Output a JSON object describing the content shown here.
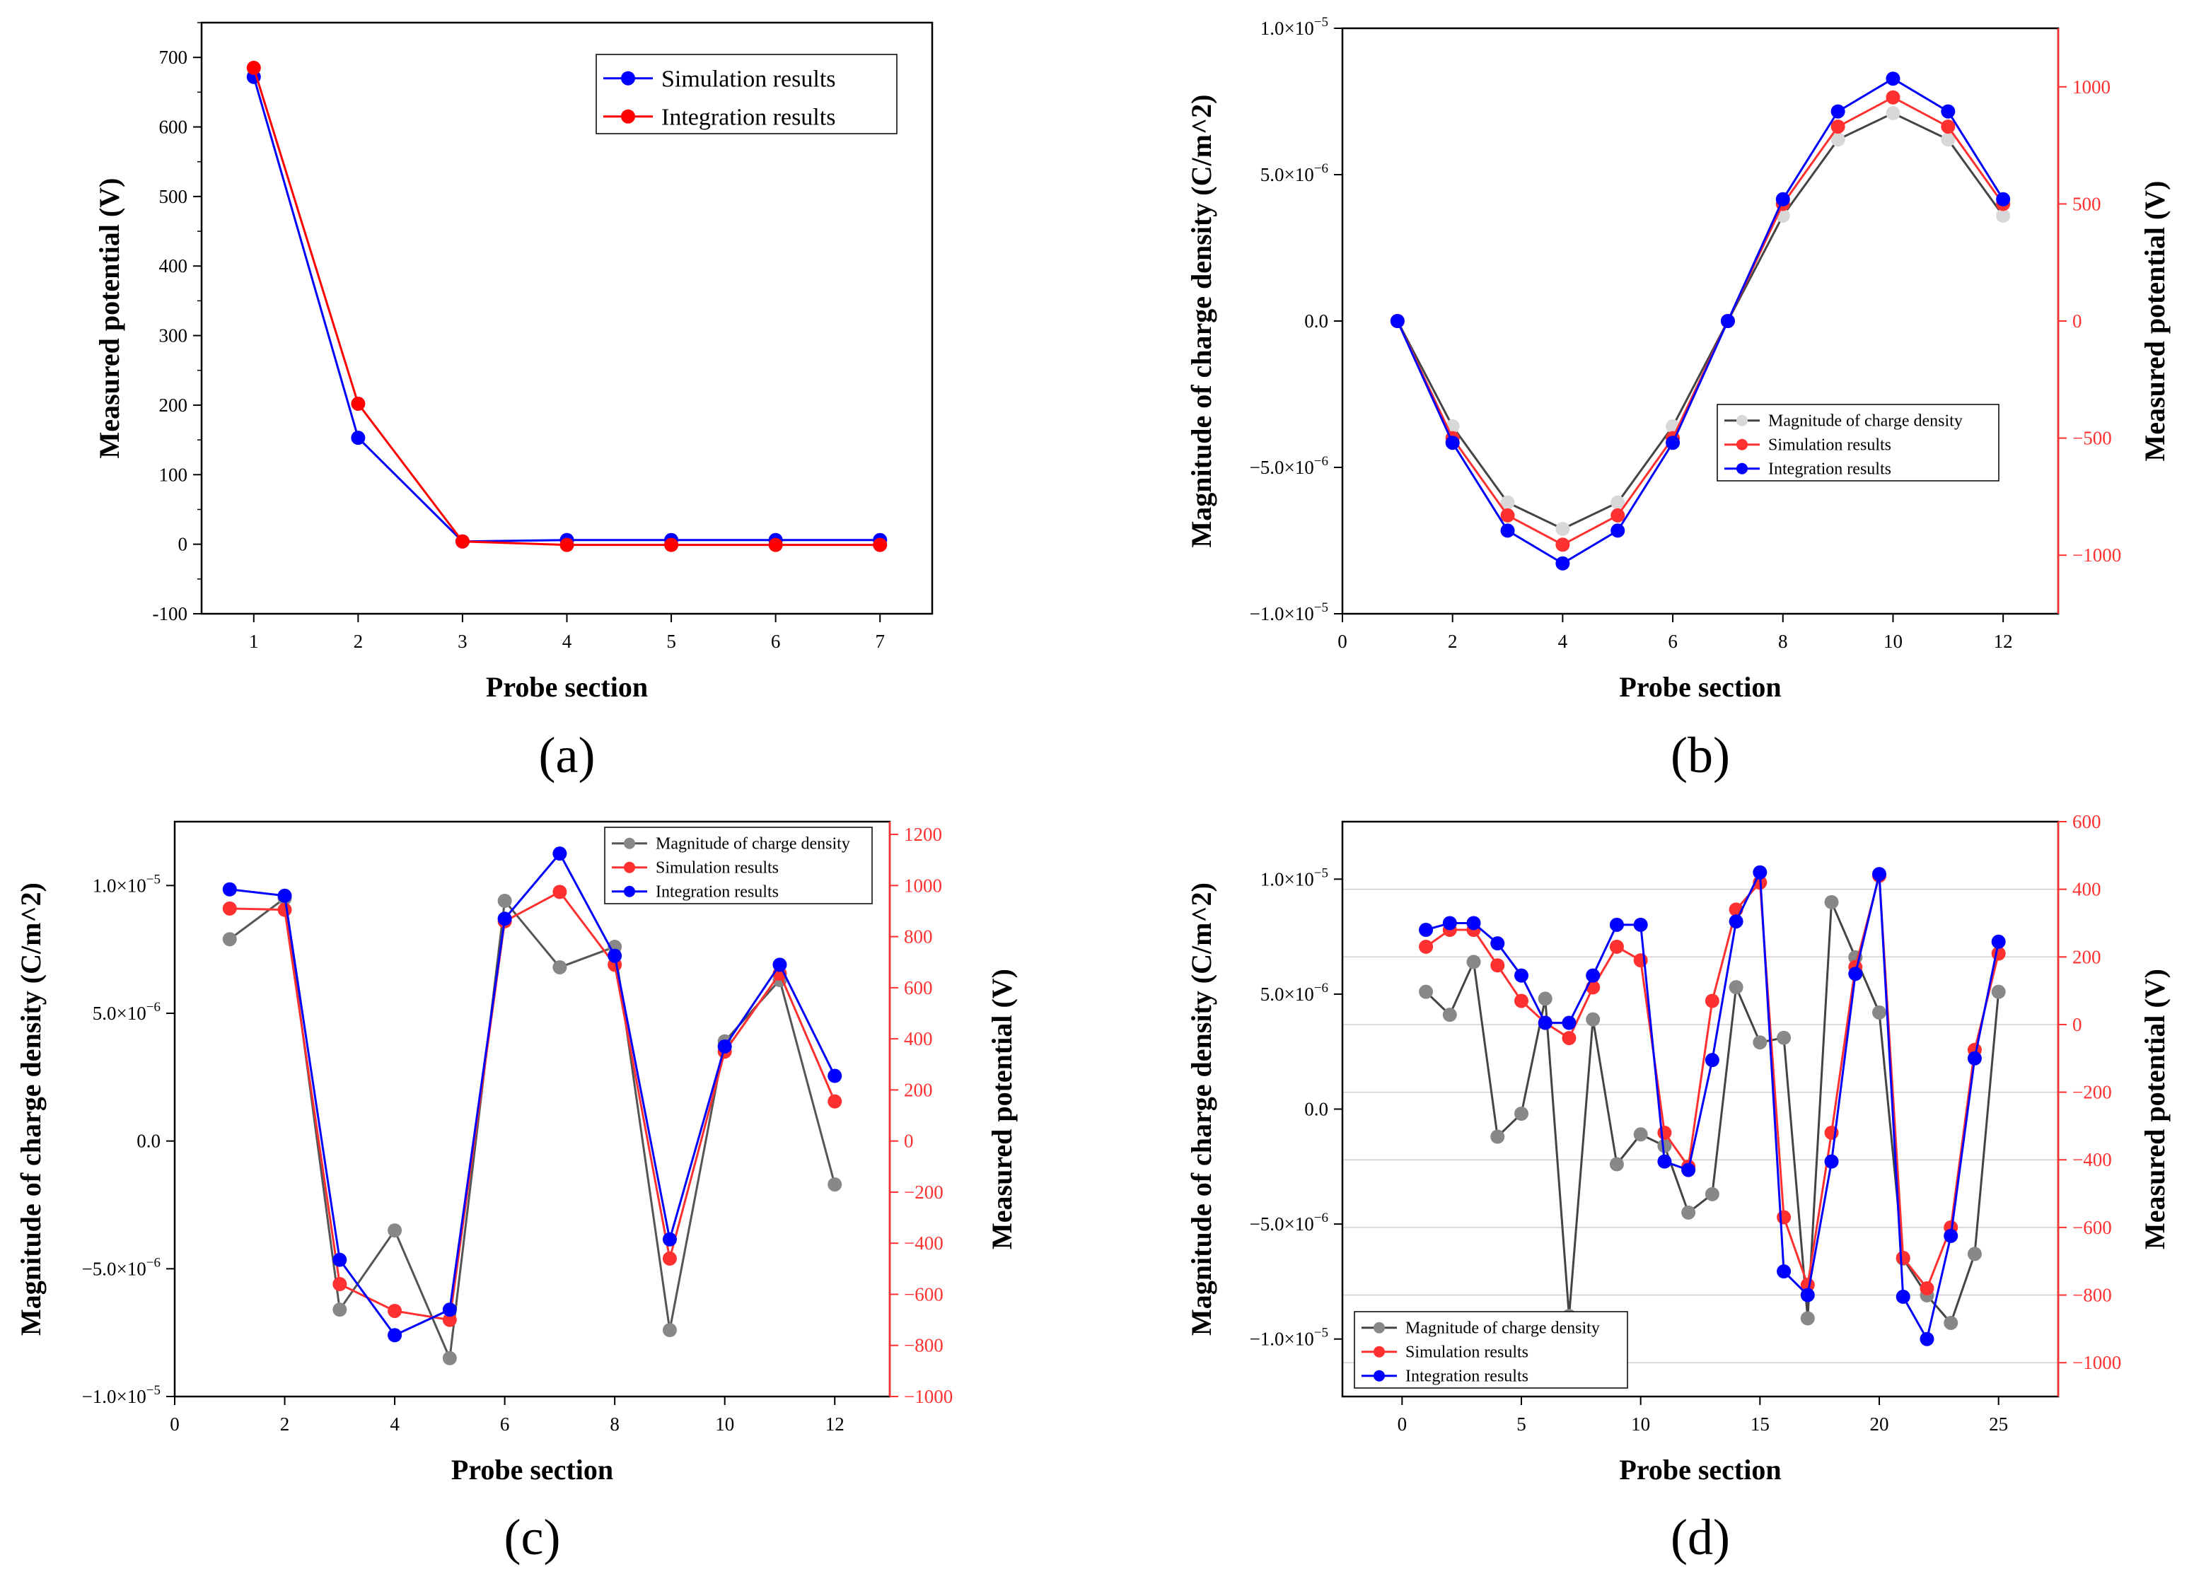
{
  "figure": {
    "panels": [
      "(a)",
      "(b)",
      "(c)",
      "(d)"
    ]
  },
  "chart_data": [
    {
      "id": "a",
      "type": "line",
      "panel_label": "(a)",
      "xlabel": "Probe section",
      "ylabel": "Measured potential (V)",
      "xlim": [
        0.5,
        7.5
      ],
      "ylim": [
        -100,
        750
      ],
      "xticks": [
        "1",
        "2",
        "3",
        "4",
        "5",
        "6",
        "7"
      ],
      "yticks": [
        "-100",
        "0",
        "100",
        "200",
        "300",
        "400",
        "500",
        "600",
        "700"
      ],
      "legend": [
        "Simulation results",
        "Integration results"
      ],
      "legend_position": "top-right",
      "x": [
        1,
        2,
        3,
        4,
        5,
        6,
        7
      ],
      "series": [
        {
          "name": "Simulation results",
          "color": "#0000ff",
          "values": [
            672,
            153,
            4,
            6,
            6,
            6,
            6
          ]
        },
        {
          "name": "Integration results",
          "color": "#ff0000",
          "values": [
            685,
            202,
            4,
            -1,
            -1,
            -1,
            -1
          ]
        }
      ]
    },
    {
      "id": "b",
      "type": "line",
      "panel_label": "(b)",
      "xlabel": "Probe section",
      "ylabel": "Magnitude of charge density (C/m^2)",
      "y2label": "Measured potential (V)",
      "xlim": [
        0,
        13
      ],
      "ylim": [
        -1e-05,
        1e-05
      ],
      "y2lim": [
        -1250,
        1250
      ],
      "xticks": [
        "0",
        "2",
        "4",
        "6",
        "8",
        "10",
        "12"
      ],
      "yticks": [
        "−1.0×10^−5",
        "−5.0×10^−6",
        "0.0",
        "5.0×10^−6",
        "1.0×10^−5"
      ],
      "y2ticks": [
        "−1000",
        "−500",
        "0",
        "500",
        "1000"
      ],
      "legend": [
        "Magnitude of charge density",
        "Simulation results",
        "Integration results"
      ],
      "legend_position": "center-right",
      "x": [
        1,
        2,
        3,
        4,
        5,
        6,
        7,
        8,
        9,
        10,
        11,
        12
      ],
      "series": [
        {
          "name": "Magnitude of charge density",
          "axis": "left",
          "color": "#444444",
          "marker": "#d8d8d8",
          "values": [
            0,
            -3.6e-06,
            -6.2e-06,
            -7.1e-06,
            -6.2e-06,
            -3.6e-06,
            0,
            3.6e-06,
            6.2e-06,
            7.1e-06,
            6.2e-06,
            3.6e-06
          ]
        },
        {
          "name": "Simulation results",
          "axis": "right",
          "color": "#ff3030",
          "values": [
            0,
            -500,
            -830,
            -955,
            -830,
            -500,
            0,
            500,
            830,
            955,
            830,
            500
          ]
        },
        {
          "name": "Integration results",
          "axis": "right",
          "color": "#0000ff",
          "values": [
            0,
            -520,
            -895,
            -1035,
            -895,
            -520,
            0,
            520,
            895,
            1035,
            895,
            520
          ]
        }
      ]
    },
    {
      "id": "c",
      "type": "line",
      "panel_label": "(c)",
      "xlabel": "Probe section",
      "ylabel": "Magnitude of charge density (C/m^2)",
      "y2label": "Measured potential (V)",
      "xlim": [
        0,
        13
      ],
      "ylim": [
        -1e-05,
        1.25e-05
      ],
      "y2lim": [
        -1000,
        1250
      ],
      "xticks": [
        "0",
        "2",
        "4",
        "6",
        "8",
        "10",
        "12"
      ],
      "yticks": [
        "−1.0×10^−5",
        "−5.0×10^−6",
        "0.0",
        "5.0×10^−6",
        "1.0×10^−5"
      ],
      "y2ticks": [
        "−1000",
        "−800",
        "−600",
        "−400",
        "−200",
        "0",
        "200",
        "400",
        "600",
        "800",
        "1000",
        "1200"
      ],
      "legend": [
        "Magnitude of charge density",
        "Simulation results",
        "Integration results"
      ],
      "legend_position": "top-right",
      "x": [
        1,
        2,
        3,
        4,
        5,
        6,
        7,
        8,
        9,
        10,
        11,
        12
      ],
      "series": [
        {
          "name": "Magnitude of charge density",
          "axis": "left",
          "color": "#555555",
          "marker": "#888888",
          "values": [
            7.9e-06,
            9.5e-06,
            -6.6e-06,
            -3.5e-06,
            -8.5e-06,
            9.4e-06,
            6.8e-06,
            7.6e-06,
            -7.4e-06,
            3.9e-06,
            6.3e-06,
            -1.7e-06
          ]
        },
        {
          "name": "Simulation results",
          "axis": "right",
          "color": "#ff3030",
          "values": [
            910,
            905,
            -560,
            -665,
            -700,
            860,
            975,
            690,
            -460,
            350,
            655,
            155
          ]
        },
        {
          "name": "Integration results",
          "axis": "right",
          "color": "#0000ff",
          "values": [
            985,
            960,
            -465,
            -760,
            -660,
            870,
            1125,
            725,
            -385,
            370,
            690,
            255
          ]
        }
      ]
    },
    {
      "id": "d",
      "type": "line",
      "panel_label": "(d)",
      "xlabel": "Probe section",
      "ylabel": "Magnitude of charge density (C/m^2)",
      "y2label": "Measured potential (V)",
      "xlim": [
        -2.5,
        27.5
      ],
      "ylim": [
        -1.25e-05,
        1.25e-05
      ],
      "y2lim": [
        -1100,
        600
      ],
      "xticks": [
        "0",
        "5",
        "10",
        "15",
        "20",
        "25"
      ],
      "yticks": [
        "−1.0×10^−5",
        "−5.0×10^−6",
        "0.0",
        "5.0×10^−6",
        "1.0×10^−5"
      ],
      "y2ticks": [
        "−1000",
        "−800",
        "−600",
        "−400",
        "−200",
        "0",
        "200",
        "400",
        "600"
      ],
      "legend": [
        "Magnitude of charge density",
        "Simulation results",
        "Integration results"
      ],
      "legend_position": "bottom-left",
      "x": [
        1,
        2,
        3,
        4,
        5,
        6,
        7,
        8,
        9,
        10,
        11,
        12,
        13,
        14,
        15,
        16,
        17,
        18,
        19,
        20,
        21,
        22,
        23,
        24,
        25
      ],
      "series": [
        {
          "name": "Magnitude of charge density",
          "axis": "left",
          "color": "#444444",
          "marker": "#888888",
          "values": [
            5.1e-06,
            4.1e-06,
            6.4e-06,
            -1.2e-06,
            -2e-07,
            4.8e-06,
            -9e-06,
            3.9e-06,
            -2.4e-06,
            -1.1e-06,
            -1.6e-06,
            -4.5e-06,
            -3.7e-06,
            5.3e-06,
            2.9e-06,
            3.1e-06,
            -9.1e-06,
            9e-06,
            6.6e-06,
            4.2e-06,
            -6.5e-06,
            -8.1e-06,
            -9.3e-06,
            -6.3e-06,
            5.1e-06
          ]
        },
        {
          "name": "Simulation results",
          "axis": "right",
          "color": "#ff3030",
          "values": [
            230,
            280,
            280,
            175,
            70,
            5,
            -40,
            110,
            230,
            190,
            -320,
            -420,
            70,
            340,
            420,
            -570,
            -770,
            -320,
            170,
            440,
            -690,
            -780,
            -600,
            -75,
            210
          ]
        },
        {
          "name": "Integration results",
          "axis": "right",
          "color": "#0000ff",
          "values": [
            280,
            300,
            300,
            240,
            145,
            5,
            5,
            145,
            295,
            295,
            -405,
            -430,
            -105,
            305,
            450,
            -730,
            -800,
            -405,
            150,
            445,
            -805,
            -930,
            -625,
            -100,
            245
          ]
        }
      ]
    }
  ]
}
